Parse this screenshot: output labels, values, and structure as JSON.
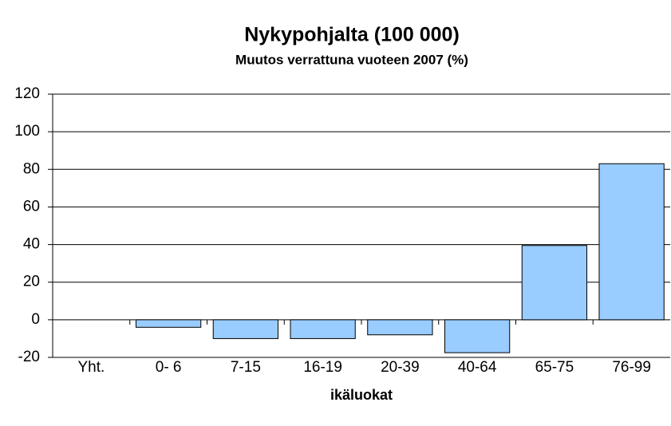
{
  "chart_data": {
    "type": "bar",
    "title": "Nykypohjalta (100 000)",
    "subtitle": "Muutos verrattuna vuoteen 2007 (%)",
    "x_label": "ikäluokat",
    "categories": [
      "Yht.",
      "0- 6",
      "7-15",
      "16-19",
      "20-39",
      "40-64",
      "65-75",
      "76-99"
    ],
    "values": [
      0,
      -4,
      -10,
      -10,
      -8,
      -17.5,
      39.5,
      83
    ],
    "color": "#99ccff",
    "ylim": [
      -20,
      120
    ],
    "yticks": [
      -20,
      0,
      20,
      40,
      60,
      80,
      100,
      120
    ],
    "grid": true
  }
}
